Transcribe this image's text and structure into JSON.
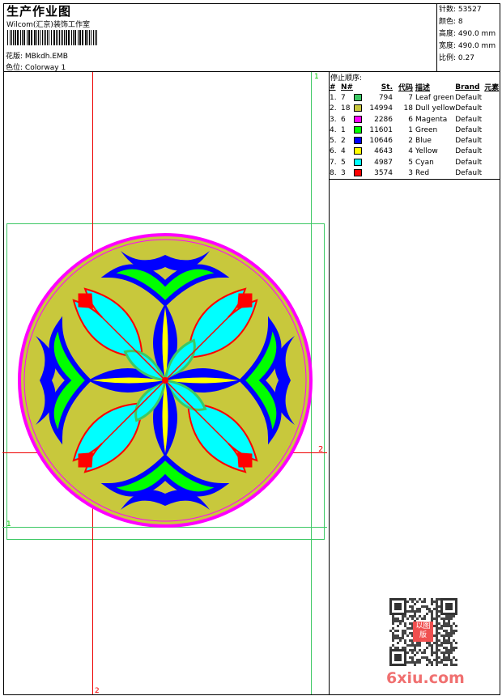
{
  "header": {
    "title": "生产作业图",
    "company": "Wilcom(汇京)装饰工作室",
    "design_label": "花版:",
    "design_value": "MBkdh.EMB",
    "colorway_label": "色位:",
    "colorway_value": "Colorway 1"
  },
  "info": [
    {
      "label": "针数:",
      "value": "53527"
    },
    {
      "label": "颜色:",
      "value": "8"
    },
    {
      "label": "高度:",
      "value": "490.0 mm"
    },
    {
      "label": "宽度:",
      "value": "490.0 mm"
    },
    {
      "label": "比例:",
      "value": "0.27"
    }
  ],
  "legend": {
    "title": "停止顺序:",
    "columns": [
      "#",
      "N#",
      "St.",
      "代码",
      "描述",
      "Brand",
      "元素"
    ],
    "rows": [
      {
        "idx": "1.",
        "n": "7",
        "color": "#3cc864",
        "st": "794",
        "code": "7",
        "desc": "Leaf green",
        "brand": "Default"
      },
      {
        "idx": "2.",
        "n": "18",
        "color": "#c8c83c",
        "st": "14994",
        "code": "18",
        "desc": "Dull yellow",
        "brand": "Default"
      },
      {
        "idx": "3.",
        "n": "6",
        "color": "#ff00ff",
        "st": "2286",
        "code": "6",
        "desc": "Magenta",
        "brand": "Default"
      },
      {
        "idx": "4.",
        "n": "1",
        "color": "#00ff00",
        "st": "11601",
        "code": "1",
        "desc": "Green",
        "brand": "Default"
      },
      {
        "idx": "5.",
        "n": "2",
        "color": "#0000ff",
        "st": "10646",
        "code": "2",
        "desc": "Blue",
        "brand": "Default"
      },
      {
        "idx": "6.",
        "n": "4",
        "color": "#ffff00",
        "st": "4643",
        "code": "4",
        "desc": "Yellow",
        "brand": "Default"
      },
      {
        "idx": "7.",
        "n": "5",
        "color": "#00ffff",
        "st": "4987",
        "code": "5",
        "desc": "Cyan",
        "brand": "Default"
      },
      {
        "idx": "8.",
        "n": "3",
        "color": "#ff0000",
        "st": "3574",
        "code": "3",
        "desc": "Red",
        "brand": "Default"
      }
    ]
  },
  "markers": {
    "green_top": "1",
    "green_left": "1",
    "red_right": "2",
    "red_bottom": "2"
  },
  "watermark": {
    "site": "6xiu.com",
    "seal": "以图版"
  }
}
